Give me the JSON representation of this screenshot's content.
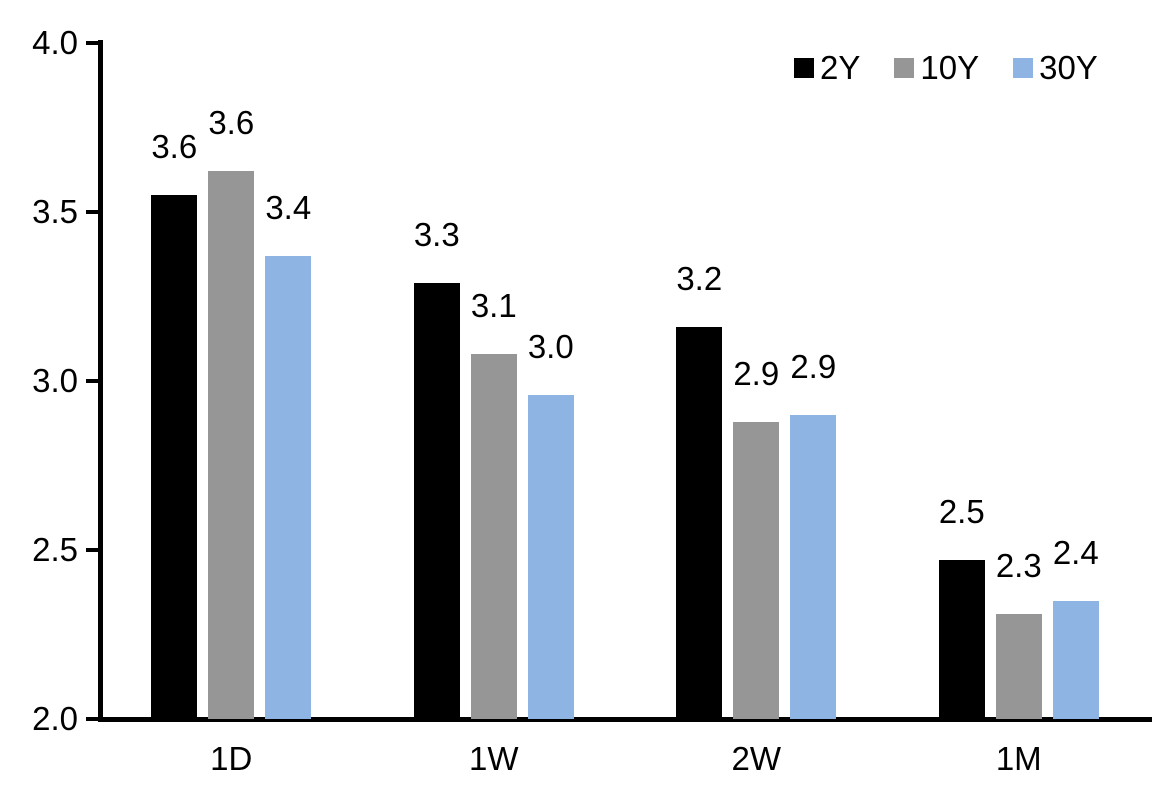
{
  "chart_data": {
    "type": "bar",
    "title": "",
    "xlabel": "",
    "ylabel": "",
    "categories": [
      "1D",
      "1W",
      "2W",
      "1M"
    ],
    "series": [
      {
        "name": "2Y",
        "color": "#000000",
        "values": [
          3.6,
          3.3,
          3.2,
          2.5
        ],
        "bar_heights": [
          3.55,
          3.29,
          3.16,
          2.47
        ]
      },
      {
        "name": "10Y",
        "color": "#969696",
        "values": [
          3.6,
          3.1,
          2.9,
          2.3
        ],
        "bar_heights": [
          3.62,
          3.08,
          2.88,
          2.31
        ]
      },
      {
        "name": "30Y",
        "color": "#8DB4E2",
        "values": [
          3.4,
          3.0,
          2.9,
          2.4
        ],
        "bar_heights": [
          3.37,
          2.96,
          2.9,
          2.35
        ]
      }
    ],
    "data_labels_visible": true,
    "ylim": [
      2.0,
      4.0
    ],
    "yticks": [
      "2.0",
      "2.5",
      "3.0",
      "3.5",
      "4.0"
    ],
    "grid": false,
    "legend_position": "top-right",
    "axis_color": "#000000",
    "background_color": "#FFFFFF"
  }
}
